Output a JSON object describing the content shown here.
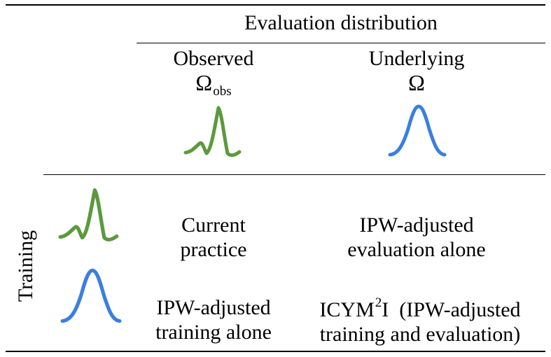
{
  "header": {
    "title": "Evaluation distribution",
    "col_observed_label": "Observed",
    "col_observed_symbol": "Ω",
    "col_observed_subscript": "obs",
    "col_underlying_label": "Underlying",
    "col_underlying_symbol": "Ω"
  },
  "training_label": "Training",
  "cells": {
    "r1c1": [
      "Current",
      "practice"
    ],
    "r1c2": [
      "IPW-adjusted",
      "evaluation alone"
    ],
    "r2c1": [
      "IPW-adjusted",
      "training alone"
    ],
    "r2c2_prefix": "ICYM",
    "r2c2_sup": "2",
    "r2c2_suffix": "I",
    "r2c2_tail": "(IPW-adjusted",
    "r2c2_line2": "training and evaluation)"
  },
  "colors": {
    "observed_curve": "#5a9a3c",
    "underlying_curve": "#3a7fe0"
  },
  "icons": {
    "observed": "bimodal-distribution-icon",
    "underlying": "unimodal-distribution-icon"
  }
}
